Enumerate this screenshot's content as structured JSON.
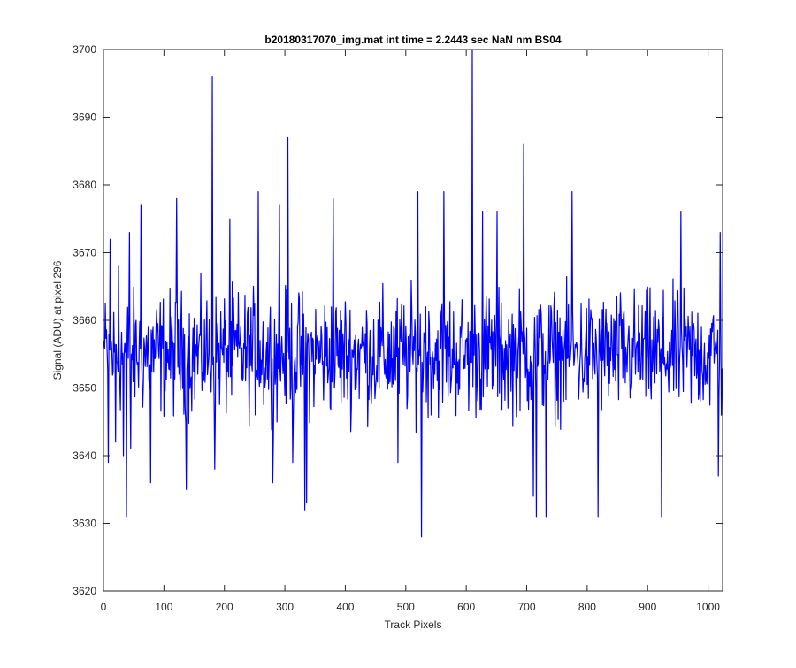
{
  "chart_data": {
    "type": "line",
    "title": "b20180317070_img.mat int time = 2.2443 sec  NaN nm BS04",
    "xlabel": "Track Pixels",
    "ylabel": "Signal (ADU) at pixel 296",
    "xlim": [
      0,
      1024
    ],
    "ylim": [
      3620,
      3700
    ],
    "xticks": [
      0,
      100,
      200,
      300,
      400,
      500,
      600,
      700,
      800,
      900,
      1000
    ],
    "yticks": [
      3620,
      3630,
      3640,
      3650,
      3660,
      3670,
      3680,
      3690,
      3700
    ],
    "grid": false,
    "legend": "none",
    "series": [
      {
        "color": "#0000ff",
        "baseline": 3655,
        "noise_amplitude": 7,
        "n_points": 1024,
        "x": [
          1,
          8,
          11,
          14,
          20,
          25,
          33,
          38,
          43,
          45,
          62,
          78,
          121,
          137,
          180,
          184,
          209,
          256,
          280,
          291,
          305,
          313,
          333,
          336,
          380,
          487,
          520,
          526,
          533,
          563,
          610,
          612,
          627,
          651,
          695,
          711,
          716,
          732,
          775,
          818,
          923,
          955,
          1017,
          1020,
          1022
        ],
        "values": [
          3657,
          3639,
          3672,
          3655,
          3642,
          3668,
          3640,
          3631,
          3673,
          3641,
          3677,
          3636,
          3678,
          3635,
          3696,
          3638,
          3675,
          3679,
          3636,
          3677,
          3687,
          3639,
          3632,
          3633,
          3678,
          3639,
          3679,
          3628,
          3662,
          3679,
          3700,
          3658,
          3676,
          3676,
          3686,
          3634,
          3631,
          3631,
          3679,
          3631,
          3631,
          3676,
          3637,
          3673,
          3646
        ]
      }
    ]
  }
}
